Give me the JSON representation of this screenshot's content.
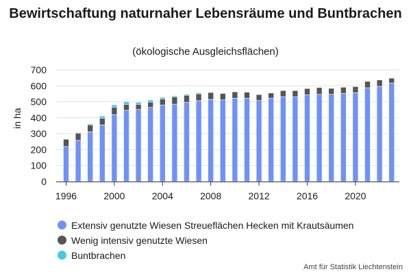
{
  "chart_data": {
    "type": "bar",
    "stacked": true,
    "title": "Bewirtschaftung naturnaher Lebensräume und Buntbrachen",
    "subtitle": "(ökologische Ausgleichsflächen)",
    "ylabel": "in ha",
    "xlabel": "",
    "ylim": [
      0,
      700
    ],
    "yticks": [
      0,
      100,
      200,
      300,
      400,
      500,
      600,
      700
    ],
    "xticks": [
      1996,
      2000,
      2004,
      2008,
      2012,
      2016,
      2020
    ],
    "grid": true,
    "legend_position": "bottom",
    "categories": [
      1996,
      1997,
      1998,
      1999,
      2000,
      2001,
      2002,
      2003,
      2004,
      2005,
      2006,
      2007,
      2008,
      2009,
      2010,
      2011,
      2012,
      2013,
      2014,
      2015,
      2016,
      2017,
      2018,
      2019,
      2020,
      2021,
      2022,
      2023
    ],
    "series": [
      {
        "name": "Extensiv genutzte Wiesen Streueflächen Hecken mit Krautsäumen",
        "color": "#6f92f7",
        "values": [
          220,
          258,
          312,
          355,
          420,
          447,
          452,
          465,
          480,
          485,
          497,
          507,
          515,
          512,
          522,
          522,
          508,
          523,
          532,
          532,
          543,
          547,
          547,
          553,
          557,
          588,
          597,
          618
        ]
      },
      {
        "name": "Wenig intensiv genutzte Wiesen",
        "color": "#555555",
        "values": [
          45,
          45,
          42,
          42,
          45,
          37,
          32,
          33,
          38,
          45,
          43,
          43,
          43,
          40,
          40,
          38,
          37,
          32,
          38,
          38,
          40,
          42,
          37,
          38,
          38,
          40,
          40,
          30
        ]
      },
      {
        "name": "Buntbrachen",
        "color": "#46c8ec",
        "values": [
          0,
          5,
          8,
          14,
          16,
          17,
          13,
          13,
          10,
          8,
          7,
          7,
          0,
          0,
          0,
          0,
          0,
          0,
          0,
          0,
          0,
          0,
          0,
          0,
          0,
          0,
          0,
          0
        ]
      }
    ]
  },
  "source": "Amt für Statistik Liechtenstein"
}
